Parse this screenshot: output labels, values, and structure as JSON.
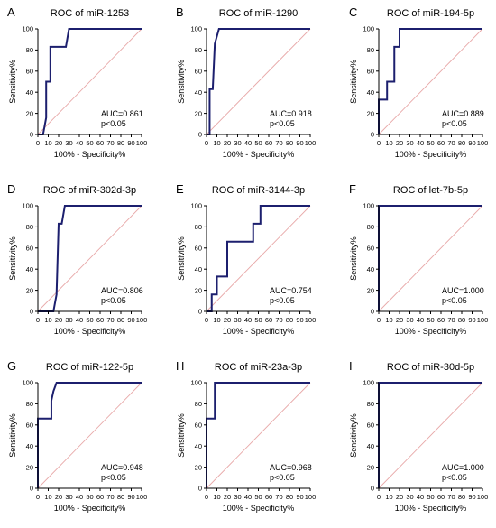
{
  "colors": {
    "roc_line": "#1c1f6e",
    "reference_line": "#e8a9a9",
    "axis": "#000000"
  },
  "chart_data": [
    {
      "type": "line",
      "panel": "A",
      "title": "ROC of miR-1253",
      "xlabel": "100% - Specificity%",
      "ylabel": "Sensitivity%",
      "xlim": [
        0,
        100
      ],
      "ylim": [
        0,
        100
      ],
      "xticks": [
        "0",
        "10",
        "20",
        "30",
        "40",
        "50",
        "60",
        "70",
        "80",
        "90",
        "100"
      ],
      "yticks": [
        "0",
        "20",
        "40",
        "60",
        "80",
        "100"
      ],
      "auc_text": "AUC=0.861",
      "p_text": "p<0.05",
      "series": [
        {
          "x": [
            0,
            5,
            8,
            8,
            12,
            12,
            18,
            20,
            27,
            30,
            100
          ],
          "y": [
            0,
            0,
            16,
            50,
            50,
            83,
            83,
            83,
            83,
            100,
            100
          ]
        }
      ]
    },
    {
      "type": "line",
      "panel": "B",
      "title": "ROC of miR-1290",
      "xlabel": "100% - Specificity%",
      "ylabel": "Sensitivity%",
      "xlim": [
        0,
        100
      ],
      "ylim": [
        0,
        100
      ],
      "xticks": [
        "0",
        "10",
        "20",
        "30",
        "40",
        "50",
        "60",
        "70",
        "80",
        "90",
        "100"
      ],
      "yticks": [
        "0",
        "20",
        "40",
        "60",
        "80",
        "100"
      ],
      "auc_text": "AUC=0.918",
      "p_text": "p<0.05",
      "series": [
        {
          "x": [
            0,
            3,
            3,
            6,
            8,
            10,
            12,
            100
          ],
          "y": [
            0,
            0,
            43,
            43,
            86,
            93,
            100,
            100
          ]
        }
      ]
    },
    {
      "type": "line",
      "panel": "C",
      "title": "ROC of miR-194-5p",
      "xlabel": "100% - Specificity%",
      "ylabel": "Sensitivity%",
      "xlim": [
        0,
        100
      ],
      "ylim": [
        0,
        100
      ],
      "xticks": [
        "0",
        "10",
        "20",
        "30",
        "40",
        "50",
        "60",
        "70",
        "80",
        "90",
        "100"
      ],
      "yticks": [
        "0",
        "20",
        "40",
        "60",
        "80",
        "100"
      ],
      "auc_text": "AUC=0.889",
      "p_text": "p<0.05",
      "series": [
        {
          "x": [
            0,
            0,
            8,
            8,
            15,
            15,
            20,
            20,
            100
          ],
          "y": [
            0,
            33,
            33,
            50,
            50,
            83,
            83,
            100,
            100
          ]
        }
      ]
    },
    {
      "type": "line",
      "panel": "D",
      "title": "ROC of miR-302d-3p",
      "xlabel": "100% - Specificity%",
      "ylabel": "Sensitivity%",
      "xlim": [
        0,
        100
      ],
      "ylim": [
        0,
        100
      ],
      "xticks": [
        "0",
        "10",
        "20",
        "30",
        "40",
        "50",
        "60",
        "70",
        "80",
        "90",
        "100"
      ],
      "yticks": [
        "0",
        "20",
        "40",
        "60",
        "80",
        "100"
      ],
      "auc_text": "AUC=0.806",
      "p_text": "p<0.05",
      "series": [
        {
          "x": [
            0,
            15,
            18,
            20,
            20,
            23,
            26,
            100
          ],
          "y": [
            0,
            0,
            16,
            83,
            83,
            83,
            100,
            100
          ]
        }
      ]
    },
    {
      "type": "line",
      "panel": "E",
      "title": "ROC of miR-3144-3p",
      "xlabel": "100% - Specificity%",
      "ylabel": "Sensitivity%",
      "xlim": [
        0,
        100
      ],
      "ylim": [
        0,
        100
      ],
      "xticks": [
        "0",
        "10",
        "20",
        "30",
        "40",
        "50",
        "60",
        "70",
        "80",
        "90",
        "100"
      ],
      "yticks": [
        "0",
        "20",
        "40",
        "60",
        "80",
        "100"
      ],
      "auc_text": "AUC=0.754",
      "p_text": "p<0.05",
      "series": [
        {
          "x": [
            0,
            5,
            5,
            10,
            10,
            20,
            20,
            45,
            45,
            52,
            52,
            100
          ],
          "y": [
            0,
            0,
            16,
            16,
            33,
            33,
            66,
            66,
            83,
            83,
            100,
            100
          ]
        }
      ]
    },
    {
      "type": "line",
      "panel": "F",
      "title": "ROC of let-7b-5p",
      "xlabel": "100% - Specificity%",
      "ylabel": "Sensitivity%",
      "xlim": [
        0,
        100
      ],
      "ylim": [
        0,
        100
      ],
      "xticks": [
        "0",
        "10",
        "20",
        "30",
        "40",
        "50",
        "60",
        "70",
        "80",
        "90",
        "100"
      ],
      "yticks": [
        "0",
        "20",
        "40",
        "60",
        "80",
        "100"
      ],
      "auc_text": "AUC=1.000",
      "p_text": "p<0.05",
      "series": [
        {
          "x": [
            0,
            0,
            100
          ],
          "y": [
            0,
            100,
            100
          ]
        }
      ]
    },
    {
      "type": "line",
      "panel": "G",
      "title": "ROC of miR-122-5p",
      "xlabel": "100% - Specificity%",
      "ylabel": "Sensitivity%",
      "xlim": [
        0,
        100
      ],
      "ylim": [
        0,
        100
      ],
      "xticks": [
        "0",
        "10",
        "20",
        "30",
        "40",
        "50",
        "60",
        "70",
        "80",
        "90",
        "100"
      ],
      "yticks": [
        "0",
        "20",
        "40",
        "60",
        "80",
        "100"
      ],
      "auc_text": "AUC=0.948",
      "p_text": "p<0.05",
      "series": [
        {
          "x": [
            0,
            0,
            13,
            13,
            15,
            18,
            100
          ],
          "y": [
            0,
            66,
            66,
            83,
            92,
            100,
            100
          ]
        }
      ]
    },
    {
      "type": "line",
      "panel": "H",
      "title": "ROC of miR-23a-3p",
      "xlabel": "100% - Specificity%",
      "ylabel": "Sensitivity%",
      "xlim": [
        0,
        100
      ],
      "ylim": [
        0,
        100
      ],
      "xticks": [
        "0",
        "10",
        "20",
        "30",
        "40",
        "50",
        "60",
        "70",
        "80",
        "90",
        "100"
      ],
      "yticks": [
        "0",
        "20",
        "40",
        "60",
        "80",
        "100"
      ],
      "auc_text": "AUC=0.968",
      "p_text": "p<0.05",
      "series": [
        {
          "x": [
            0,
            0,
            8,
            8,
            100
          ],
          "y": [
            0,
            66,
            66,
            100,
            100
          ]
        }
      ]
    },
    {
      "type": "line",
      "panel": "I",
      "title": "ROC of miR-30d-5p",
      "xlabel": "100% - Specificity%",
      "ylabel": "Sensitivity%",
      "xlim": [
        0,
        100
      ],
      "ylim": [
        0,
        100
      ],
      "xticks": [
        "0",
        "10",
        "20",
        "30",
        "40",
        "50",
        "60",
        "70",
        "80",
        "90",
        "100"
      ],
      "yticks": [
        "0",
        "20",
        "40",
        "60",
        "80",
        "100"
      ],
      "auc_text": "AUC=1.000",
      "p_text": "p<0.05",
      "series": [
        {
          "x": [
            0,
            0,
            100
          ],
          "y": [
            0,
            100,
            100
          ]
        }
      ]
    }
  ]
}
